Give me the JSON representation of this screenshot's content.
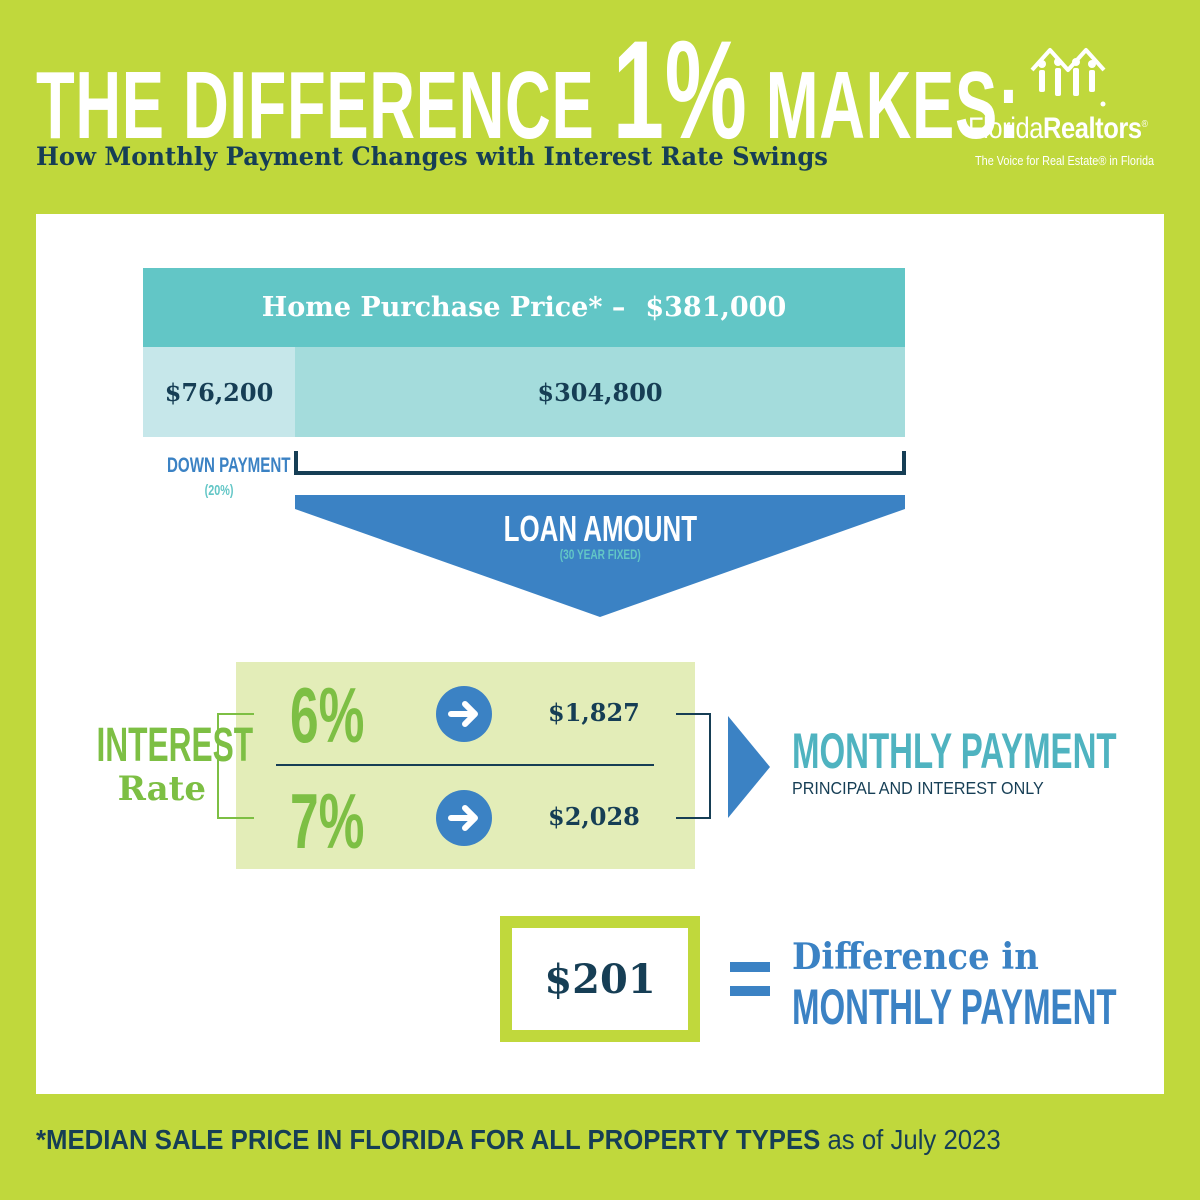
{
  "header": {
    "title_part1": "THE DIFFERENCE ",
    "title_big": "1%",
    "title_part2": " MAKES:",
    "subtitle": "How Monthly Payment Changes with Interest Rate Swings"
  },
  "logo": {
    "name_part1": "Florida",
    "name_part2": "Realtors",
    "registered": "®",
    "tagline": "The Voice for Real Estate® in Florida"
  },
  "purchase": {
    "label": "Home Purchase Price* –",
    "price": "$381,000",
    "down_payment_value": "$76,200",
    "loan_value": "$304,800",
    "down_payment_label": "DOWN PAYMENT",
    "down_payment_pct": "(20%)",
    "loan_label": "LOAN AMOUNT",
    "loan_term": "(30 YEAR FIXED)"
  },
  "rates": {
    "label_line1": "INTEREST",
    "label_line2": "Rate",
    "rows": [
      {
        "rate": "6%",
        "payment": "$1,827"
      },
      {
        "rate": "7%",
        "payment": "$2,028"
      }
    ]
  },
  "monthly_payment": {
    "label": "MONTHLY PAYMENT",
    "sublabel": "PRINCIPAL AND INTEREST ONLY"
  },
  "difference": {
    "value": "$201",
    "label_line1": "Difference in",
    "label_line2": "MONTHLY PAYMENT"
  },
  "footer": {
    "bold_text": "*MEDIAN SALE PRICE IN FLORIDA FOR ALL PROPERTY TYPES",
    "normal_text": " as of July 2023"
  },
  "colors": {
    "background": "#c0d83c",
    "navy": "#163e55",
    "teal": "#62c6c6",
    "blue": "#3b82c4",
    "green": "#7dbf44"
  }
}
